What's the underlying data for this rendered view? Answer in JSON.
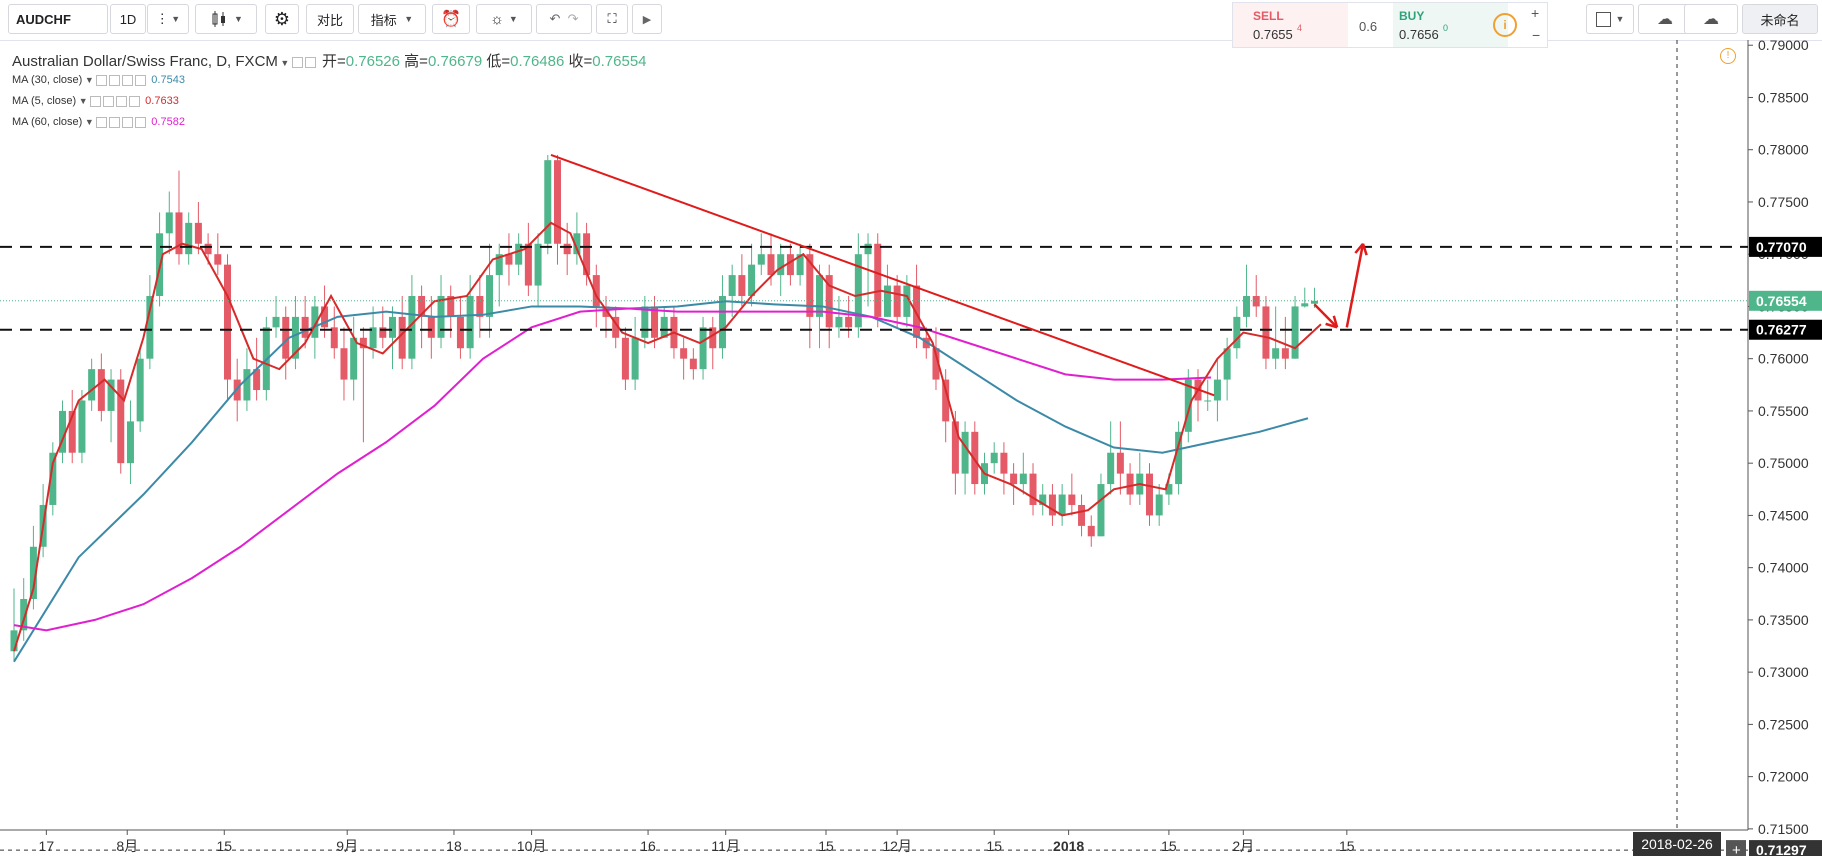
{
  "toolbar": {
    "symbol": "AUDCHF",
    "interval": "1D",
    "compare": "对比",
    "indicators": "指标",
    "layout_name": "未命名"
  },
  "trade": {
    "sell_label": "SELL",
    "sell_price": "0.7655",
    "sell_sup": "4",
    "spread": "0.6",
    "buy_label": "BUY",
    "buy_price": "0.7656",
    "buy_sup": "0"
  },
  "legend": {
    "title": "Australian Dollar/Swiss Franc, D, FXCM",
    "open_label": "开=",
    "open": "0.76526",
    "high_label": "高=",
    "high": "0.76679",
    "low_label": "低=",
    "low": "0.76486",
    "close_label": "收=",
    "close": "0.76554",
    "ma30_label": "MA (30, close)",
    "ma30_value": "0.7543",
    "ma5_label": "MA (5, close)",
    "ma5_value": "0.7633",
    "ma60_label": "MA (60, close)",
    "ma60_value": "0.7582"
  },
  "colors": {
    "up": "#4fb58b",
    "down": "#e45a67",
    "ma30": "#3c8aa8",
    "ma5": "#d62b2b",
    "ma60": "#e020d0",
    "trend": "#e01b1b"
  },
  "chart_data": {
    "type": "candlestick",
    "ylim": [
      0.7125,
      0.7905
    ],
    "y_ticks": [
      "0.79000",
      "0.78500",
      "0.78000",
      "0.77500",
      "0.77000",
      "0.76500",
      "0.76000",
      "0.75500",
      "0.75000",
      "0.74500",
      "0.74000",
      "0.73500",
      "0.73000",
      "0.72500",
      "0.72000",
      "0.71500"
    ],
    "x_ticks": [
      "17",
      "8月",
      "15",
      "9月",
      "18",
      "10月",
      "16",
      "11月",
      "15",
      "12月",
      "15",
      "2018",
      "15",
      "2月",
      "15"
    ],
    "x_tick_positions_day": [
      10,
      35,
      65,
      103,
      136,
      160,
      196,
      220,
      251,
      273,
      303,
      326,
      357,
      380,
      412
    ],
    "time_label": "2018-02-26",
    "price_labels": [
      "0.77070",
      "0.76554",
      "0.76277",
      "0.71297"
    ],
    "hlines": [
      0.7707,
      0.76277
    ],
    "last_price": 0.76554,
    "crosshair_price": 0.71297,
    "trendline": [
      [
        166,
        0.7795
      ],
      [
        371,
        0.7565
      ]
    ],
    "arrows": [
      [
        [
          402,
          0.7652
        ],
        [
          409,
          0.763
        ]
      ],
      [
        [
          412,
          0.763
        ],
        [
          417,
          0.771
        ]
      ]
    ],
    "ma30": [
      [
        0,
        0.731
      ],
      [
        10,
        0.736
      ],
      [
        20,
        0.741
      ],
      [
        30,
        0.744
      ],
      [
        40,
        0.747
      ],
      [
        55,
        0.752
      ],
      [
        70,
        0.7575
      ],
      [
        85,
        0.762
      ],
      [
        100,
        0.764
      ],
      [
        115,
        0.7645
      ],
      [
        130,
        0.764
      ],
      [
        145,
        0.7642
      ],
      [
        160,
        0.765
      ],
      [
        175,
        0.765
      ],
      [
        190,
        0.7648
      ],
      [
        205,
        0.765
      ],
      [
        220,
        0.7655
      ],
      [
        235,
        0.7652
      ],
      [
        250,
        0.765
      ],
      [
        265,
        0.764
      ],
      [
        280,
        0.762
      ],
      [
        295,
        0.759
      ],
      [
        310,
        0.756
      ],
      [
        325,
        0.7535
      ],
      [
        340,
        0.7515
      ],
      [
        355,
        0.751
      ],
      [
        370,
        0.752
      ],
      [
        385,
        0.753
      ],
      [
        400,
        0.7543
      ]
    ],
    "ma5": [
      [
        0,
        0.732
      ],
      [
        6,
        0.738
      ],
      [
        12,
        0.75
      ],
      [
        20,
        0.756
      ],
      [
        28,
        0.758
      ],
      [
        34,
        0.756
      ],
      [
        40,
        0.762
      ],
      [
        46,
        0.77
      ],
      [
        52,
        0.771
      ],
      [
        58,
        0.7705
      ],
      [
        66,
        0.766
      ],
      [
        74,
        0.76
      ],
      [
        82,
        0.759
      ],
      [
        90,
        0.7615
      ],
      [
        98,
        0.766
      ],
      [
        106,
        0.7615
      ],
      [
        114,
        0.7605
      ],
      [
        122,
        0.763
      ],
      [
        130,
        0.7655
      ],
      [
        140,
        0.766
      ],
      [
        148,
        0.7695
      ],
      [
        158,
        0.7705
      ],
      [
        166,
        0.773
      ],
      [
        172,
        0.772
      ],
      [
        180,
        0.766
      ],
      [
        188,
        0.7625
      ],
      [
        196,
        0.7615
      ],
      [
        204,
        0.7625
      ],
      [
        212,
        0.7615
      ],
      [
        220,
        0.763
      ],
      [
        228,
        0.766
      ],
      [
        236,
        0.7685
      ],
      [
        244,
        0.77
      ],
      [
        252,
        0.767
      ],
      [
        260,
        0.766
      ],
      [
        268,
        0.7665
      ],
      [
        276,
        0.766
      ],
      [
        284,
        0.7615
      ],
      [
        292,
        0.7525
      ],
      [
        300,
        0.749
      ],
      [
        308,
        0.748
      ],
      [
        316,
        0.7465
      ],
      [
        324,
        0.745
      ],
      [
        332,
        0.7455
      ],
      [
        340,
        0.7475
      ],
      [
        348,
        0.748
      ],
      [
        356,
        0.7475
      ],
      [
        364,
        0.756
      ],
      [
        372,
        0.76
      ],
      [
        380,
        0.7625
      ],
      [
        388,
        0.762
      ],
      [
        396,
        0.761
      ],
      [
        404,
        0.7633
      ]
    ],
    "ma60": [
      [
        0,
        0.7345
      ],
      [
        10,
        0.734
      ],
      [
        25,
        0.735
      ],
      [
        40,
        0.7365
      ],
      [
        55,
        0.739
      ],
      [
        70,
        0.742
      ],
      [
        85,
        0.7455
      ],
      [
        100,
        0.749
      ],
      [
        115,
        0.752
      ],
      [
        130,
        0.7555
      ],
      [
        145,
        0.76
      ],
      [
        160,
        0.763
      ],
      [
        175,
        0.7645
      ],
      [
        190,
        0.7648
      ],
      [
        205,
        0.7645
      ],
      [
        220,
        0.7645
      ],
      [
        235,
        0.7645
      ],
      [
        250,
        0.7645
      ],
      [
        265,
        0.764
      ],
      [
        280,
        0.763
      ],
      [
        295,
        0.7615
      ],
      [
        310,
        0.76
      ],
      [
        325,
        0.7585
      ],
      [
        340,
        0.758
      ],
      [
        355,
        0.758
      ],
      [
        370,
        0.7582
      ]
    ],
    "candles": [
      [
        0,
        0.732,
        0.734,
        0.738,
        0.731
      ],
      [
        3,
        0.734,
        0.737,
        0.739,
        0.733
      ],
      [
        6,
        0.737,
        0.742,
        0.744,
        0.736
      ],
      [
        9,
        0.742,
        0.746,
        0.748,
        0.741
      ],
      [
        12,
        0.746,
        0.751,
        0.752,
        0.745
      ],
      [
        15,
        0.751,
        0.755,
        0.756,
        0.75
      ],
      [
        18,
        0.755,
        0.751,
        0.757,
        0.75
      ],
      [
        21,
        0.751,
        0.756,
        0.757,
        0.75
      ],
      [
        24,
        0.756,
        0.759,
        0.76,
        0.755
      ],
      [
        27,
        0.759,
        0.755,
        0.7605,
        0.754
      ],
      [
        30,
        0.755,
        0.758,
        0.759,
        0.752
      ],
      [
        33,
        0.758,
        0.75,
        0.759,
        0.749
      ],
      [
        36,
        0.75,
        0.754,
        0.756,
        0.748
      ],
      [
        39,
        0.754,
        0.76,
        0.761,
        0.753
      ],
      [
        42,
        0.76,
        0.766,
        0.768,
        0.759
      ],
      [
        45,
        0.766,
        0.772,
        0.774,
        0.765
      ],
      [
        48,
        0.772,
        0.774,
        0.776,
        0.77
      ],
      [
        51,
        0.774,
        0.77,
        0.778,
        0.769
      ],
      [
        54,
        0.77,
        0.773,
        0.774,
        0.769
      ],
      [
        57,
        0.773,
        0.771,
        0.775,
        0.77
      ],
      [
        60,
        0.771,
        0.77,
        0.772,
        0.769
      ],
      [
        63,
        0.77,
        0.769,
        0.772,
        0.768
      ],
      [
        66,
        0.769,
        0.758,
        0.77,
        0.756
      ],
      [
        69,
        0.758,
        0.756,
        0.76,
        0.754
      ],
      [
        72,
        0.756,
        0.759,
        0.761,
        0.755
      ],
      [
        75,
        0.759,
        0.757,
        0.762,
        0.756
      ],
      [
        78,
        0.757,
        0.763,
        0.764,
        0.756
      ],
      [
        81,
        0.763,
        0.764,
        0.766,
        0.762
      ],
      [
        84,
        0.764,
        0.76,
        0.765,
        0.758
      ],
      [
        87,
        0.76,
        0.764,
        0.766,
        0.759
      ],
      [
        90,
        0.764,
        0.762,
        0.766,
        0.761
      ],
      [
        93,
        0.762,
        0.765,
        0.766,
        0.76
      ],
      [
        96,
        0.765,
        0.763,
        0.767,
        0.762
      ],
      [
        99,
        0.763,
        0.761,
        0.765,
        0.76
      ],
      [
        102,
        0.761,
        0.758,
        0.763,
        0.756
      ],
      [
        105,
        0.758,
        0.762,
        0.764,
        0.756
      ],
      [
        108,
        0.762,
        0.761,
        0.763,
        0.752
      ],
      [
        111,
        0.761,
        0.763,
        0.765,
        0.76
      ],
      [
        114,
        0.763,
        0.762,
        0.765,
        0.761
      ],
      [
        117,
        0.762,
        0.764,
        0.765,
        0.759
      ],
      [
        120,
        0.764,
        0.76,
        0.766,
        0.759
      ],
      [
        123,
        0.76,
        0.766,
        0.768,
        0.759
      ],
      [
        126,
        0.766,
        0.764,
        0.767,
        0.761
      ],
      [
        129,
        0.764,
        0.762,
        0.766,
        0.76
      ],
      [
        132,
        0.762,
        0.766,
        0.768,
        0.761
      ],
      [
        135,
        0.766,
        0.764,
        0.767,
        0.762
      ],
      [
        138,
        0.764,
        0.761,
        0.766,
        0.76
      ],
      [
        141,
        0.761,
        0.766,
        0.768,
        0.76
      ],
      [
        144,
        0.766,
        0.764,
        0.768,
        0.762
      ],
      [
        147,
        0.764,
        0.768,
        0.771,
        0.762
      ],
      [
        150,
        0.768,
        0.77,
        0.771,
        0.765
      ],
      [
        153,
        0.77,
        0.769,
        0.772,
        0.767
      ],
      [
        156,
        0.769,
        0.771,
        0.772,
        0.768
      ],
      [
        159,
        0.771,
        0.767,
        0.773,
        0.766
      ],
      [
        162,
        0.767,
        0.771,
        0.772,
        0.765
      ],
      [
        165,
        0.771,
        0.779,
        0.7795,
        0.77
      ],
      [
        168,
        0.779,
        0.771,
        0.7795,
        0.769
      ],
      [
        171,
        0.771,
        0.77,
        0.773,
        0.768
      ],
      [
        174,
        0.77,
        0.772,
        0.774,
        0.769
      ],
      [
        177,
        0.772,
        0.768,
        0.773,
        0.767
      ],
      [
        180,
        0.768,
        0.765,
        0.769,
        0.763
      ],
      [
        183,
        0.765,
        0.764,
        0.766,
        0.762
      ],
      [
        186,
        0.764,
        0.762,
        0.765,
        0.761
      ],
      [
        189,
        0.762,
        0.758,
        0.763,
        0.757
      ],
      [
        192,
        0.758,
        0.762,
        0.764,
        0.757
      ],
      [
        195,
        0.762,
        0.765,
        0.766,
        0.761
      ],
      [
        198,
        0.765,
        0.762,
        0.766,
        0.761
      ],
      [
        201,
        0.762,
        0.764,
        0.765,
        0.762
      ],
      [
        204,
        0.764,
        0.761,
        0.765,
        0.76
      ],
      [
        207,
        0.761,
        0.76,
        0.762,
        0.758
      ],
      [
        210,
        0.76,
        0.759,
        0.761,
        0.758
      ],
      [
        213,
        0.759,
        0.763,
        0.764,
        0.758
      ],
      [
        216,
        0.763,
        0.761,
        0.764,
        0.759
      ],
      [
        219,
        0.761,
        0.766,
        0.768,
        0.76
      ],
      [
        222,
        0.766,
        0.768,
        0.769,
        0.764
      ],
      [
        225,
        0.768,
        0.766,
        0.77,
        0.765
      ],
      [
        228,
        0.766,
        0.769,
        0.771,
        0.765
      ],
      [
        231,
        0.769,
        0.77,
        0.772,
        0.768
      ],
      [
        234,
        0.77,
        0.768,
        0.772,
        0.767
      ],
      [
        237,
        0.768,
        0.77,
        0.771,
        0.766
      ],
      [
        240,
        0.77,
        0.768,
        0.771,
        0.767
      ],
      [
        243,
        0.768,
        0.77,
        0.771,
        0.767
      ],
      [
        246,
        0.77,
        0.764,
        0.771,
        0.761
      ],
      [
        249,
        0.764,
        0.768,
        0.769,
        0.761
      ],
      [
        252,
        0.768,
        0.763,
        0.769,
        0.761
      ],
      [
        255,
        0.763,
        0.764,
        0.766,
        0.762
      ],
      [
        258,
        0.764,
        0.763,
        0.766,
        0.762
      ],
      [
        261,
        0.763,
        0.77,
        0.772,
        0.762
      ],
      [
        264,
        0.77,
        0.771,
        0.772,
        0.765
      ],
      [
        267,
        0.771,
        0.764,
        0.772,
        0.763
      ],
      [
        270,
        0.764,
        0.767,
        0.769,
        0.764
      ],
      [
        273,
        0.767,
        0.764,
        0.768,
        0.763
      ],
      [
        276,
        0.764,
        0.767,
        0.768,
        0.763
      ],
      [
        279,
        0.767,
        0.762,
        0.769,
        0.761
      ],
      [
        282,
        0.762,
        0.761,
        0.763,
        0.76
      ],
      [
        285,
        0.761,
        0.758,
        0.763,
        0.757
      ],
      [
        288,
        0.758,
        0.754,
        0.759,
        0.752
      ],
      [
        291,
        0.754,
        0.749,
        0.755,
        0.747
      ],
      [
        294,
        0.749,
        0.753,
        0.754,
        0.747
      ],
      [
        297,
        0.753,
        0.748,
        0.754,
        0.747
      ],
      [
        300,
        0.748,
        0.75,
        0.751,
        0.747
      ],
      [
        303,
        0.75,
        0.751,
        0.752,
        0.749
      ],
      [
        306,
        0.751,
        0.749,
        0.752,
        0.747
      ],
      [
        309,
        0.749,
        0.748,
        0.75,
        0.746
      ],
      [
        312,
        0.748,
        0.749,
        0.751,
        0.747
      ],
      [
        315,
        0.749,
        0.746,
        0.75,
        0.745
      ],
      [
        318,
        0.746,
        0.747,
        0.748,
        0.745
      ],
      [
        321,
        0.747,
        0.745,
        0.748,
        0.744
      ],
      [
        324,
        0.745,
        0.747,
        0.748,
        0.744
      ],
      [
        327,
        0.747,
        0.746,
        0.749,
        0.745
      ],
      [
        330,
        0.746,
        0.744,
        0.747,
        0.743
      ],
      [
        333,
        0.744,
        0.743,
        0.745,
        0.742
      ],
      [
        336,
        0.743,
        0.748,
        0.749,
        0.743
      ],
      [
        339,
        0.748,
        0.751,
        0.754,
        0.747
      ],
      [
        342,
        0.751,
        0.749,
        0.754,
        0.747
      ],
      [
        345,
        0.749,
        0.747,
        0.75,
        0.746
      ],
      [
        348,
        0.747,
        0.749,
        0.751,
        0.746
      ],
      [
        351,
        0.749,
        0.745,
        0.75,
        0.744
      ],
      [
        354,
        0.745,
        0.747,
        0.748,
        0.744
      ],
      [
        357,
        0.747,
        0.748,
        0.749,
        0.746
      ],
      [
        360,
        0.748,
        0.753,
        0.754,
        0.747
      ],
      [
        363,
        0.753,
        0.758,
        0.759,
        0.752
      ],
      [
        366,
        0.758,
        0.756,
        0.759,
        0.754
      ],
      [
        369,
        0.756,
        0.756,
        0.758,
        0.755
      ],
      [
        372,
        0.756,
        0.758,
        0.76,
        0.754
      ],
      [
        375,
        0.758,
        0.761,
        0.762,
        0.756
      ],
      [
        378,
        0.761,
        0.764,
        0.765,
        0.76
      ],
      [
        381,
        0.764,
        0.766,
        0.769,
        0.763
      ],
      [
        384,
        0.766,
        0.765,
        0.768,
        0.764
      ],
      [
        387,
        0.765,
        0.76,
        0.766,
        0.759
      ],
      [
        390,
        0.76,
        0.761,
        0.765,
        0.759
      ],
      [
        393,
        0.761,
        0.76,
        0.764,
        0.759
      ],
      [
        396,
        0.76,
        0.765,
        0.766,
        0.76
      ],
      [
        399,
        0.765,
        0.7653,
        0.7668,
        0.7649
      ],
      [
        402,
        0.76526,
        0.76554,
        0.76679,
        0.76486
      ]
    ]
  }
}
